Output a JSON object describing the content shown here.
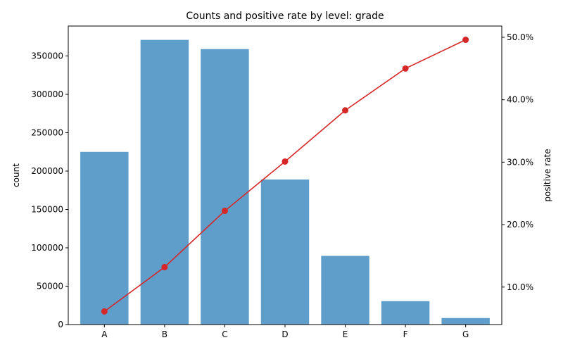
{
  "chart_data": {
    "type": "bar",
    "title": "Counts and positive rate by level: grade",
    "categories": [
      "A",
      "B",
      "C",
      "D",
      "E",
      "F",
      "G"
    ],
    "series": [
      {
        "type": "bar",
        "axis": "left",
        "values": [
          225000,
          371000,
          359000,
          189000,
          89500,
          30500,
          8500
        ],
        "color": "#5f9ecb"
      },
      {
        "type": "line",
        "axis": "right",
        "values": [
          0.061,
          0.132,
          0.222,
          0.301,
          0.383,
          0.45,
          0.496
        ],
        "color": "#d62728"
      }
    ],
    "ylabel_left": "count",
    "ylabel_right": "positive rate",
    "ylim_left": [
      0,
      389000
    ],
    "ylim_right": [
      0.04,
      0.518
    ],
    "yticks_left": [
      0,
      50000,
      100000,
      150000,
      200000,
      250000,
      300000,
      350000
    ],
    "yticks_right": [
      0.1,
      0.2,
      0.3,
      0.4,
      0.5
    ],
    "yticks_right_labels": [
      "10.0%",
      "20.0%",
      "30.0%",
      "40.0%",
      "50.0%"
    ],
    "grid": false
  }
}
